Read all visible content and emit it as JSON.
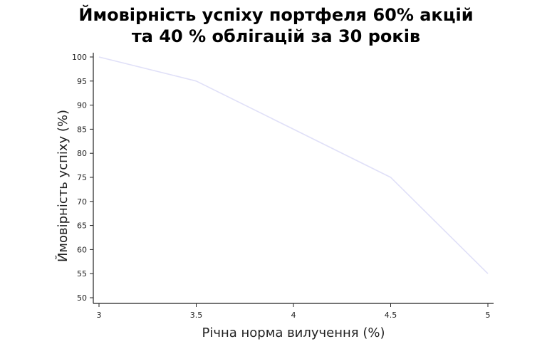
{
  "chart_data": {
    "type": "line",
    "title_lines": [
      "Ймовірність успіху портфеля 60% акцій",
      "та 40 % облігацій за 30 років"
    ],
    "xlabel": "Річна норма вилучення (%)",
    "ylabel": "Ймовірність успіху (%)",
    "x": [
      3,
      3.5,
      4,
      4.5,
      5
    ],
    "x_tick_labels": [
      "3",
      "3.5",
      "4",
      "4.5",
      "5"
    ],
    "series": [
      {
        "values": [
          100,
          95,
          85,
          75,
          55
        ]
      }
    ],
    "xlim": [
      3,
      5
    ],
    "ylim": [
      50,
      100
    ],
    "y_ticks": [
      50,
      55,
      60,
      65,
      70,
      75,
      80,
      85,
      90,
      95,
      100
    ],
    "grid": false,
    "line_color": "#e0e0f8"
  }
}
